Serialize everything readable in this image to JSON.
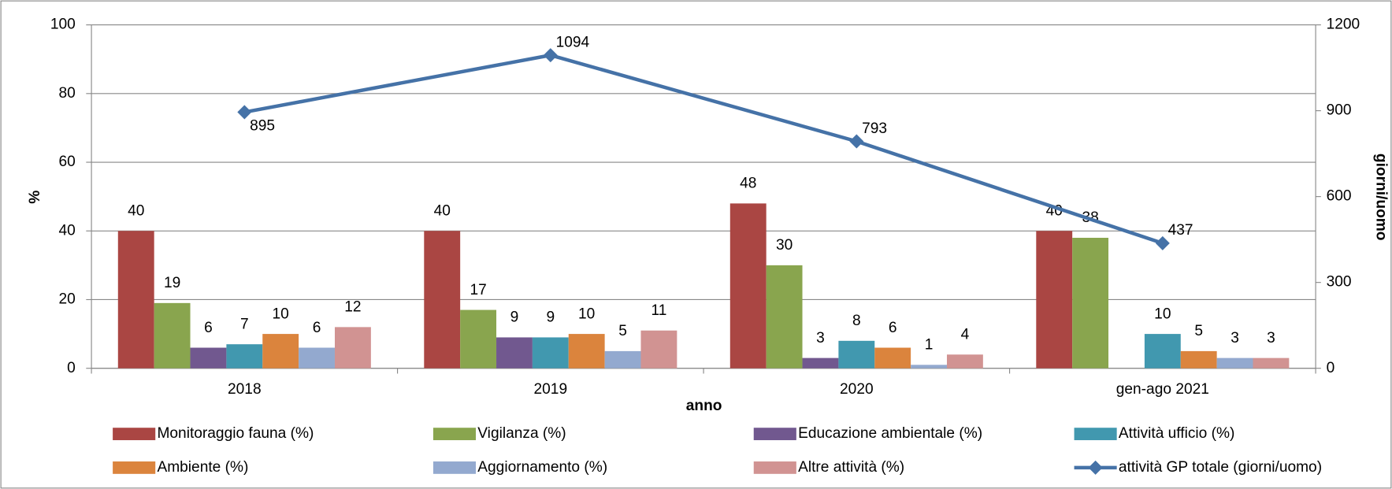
{
  "chart_data": {
    "type": "bar",
    "xlabel": "anno",
    "ylabel": "%",
    "y2label": "giorni/uomo",
    "categories": [
      "2018",
      "2019",
      "2020",
      "gen-ago 2021"
    ],
    "series": [
      {
        "name": "Monitoraggio fauna (%)",
        "color": "#AA4643",
        "values": [
          40,
          40,
          48,
          40
        ]
      },
      {
        "name": "Vigilanza (%)",
        "color": "#89A54E",
        "values": [
          19,
          17,
          30,
          38
        ]
      },
      {
        "name": "Educazione ambientale (%)",
        "color": "#71588F",
        "values": [
          6,
          9,
          3,
          null
        ]
      },
      {
        "name": "Attività ufficio (%)",
        "color": "#4198AF",
        "values": [
          7,
          9,
          8,
          10
        ]
      },
      {
        "name": "Ambiente (%)",
        "color": "#DB843D",
        "values": [
          10,
          10,
          6,
          5
        ]
      },
      {
        "name": "Aggiornamento (%)",
        "color": "#93A9CF",
        "values": [
          6,
          5,
          1,
          3
        ]
      },
      {
        "name": "Altre attività (%)",
        "color": "#D19392",
        "values": [
          12,
          11,
          4,
          3
        ]
      },
      {
        "name": "attività GP totale (giorni/uomo)",
        "color": "#4572A7",
        "values": [
          895,
          1094,
          793,
          437
        ],
        "axis": "y2",
        "type": "line"
      }
    ],
    "ylim": [
      0,
      100
    ],
    "yticks": [
      0,
      20,
      40,
      60,
      80,
      100
    ],
    "y2lim": [
      0,
      1200
    ],
    "y2ticks": [
      0,
      300,
      600,
      900,
      1200
    ],
    "grid": true
  }
}
